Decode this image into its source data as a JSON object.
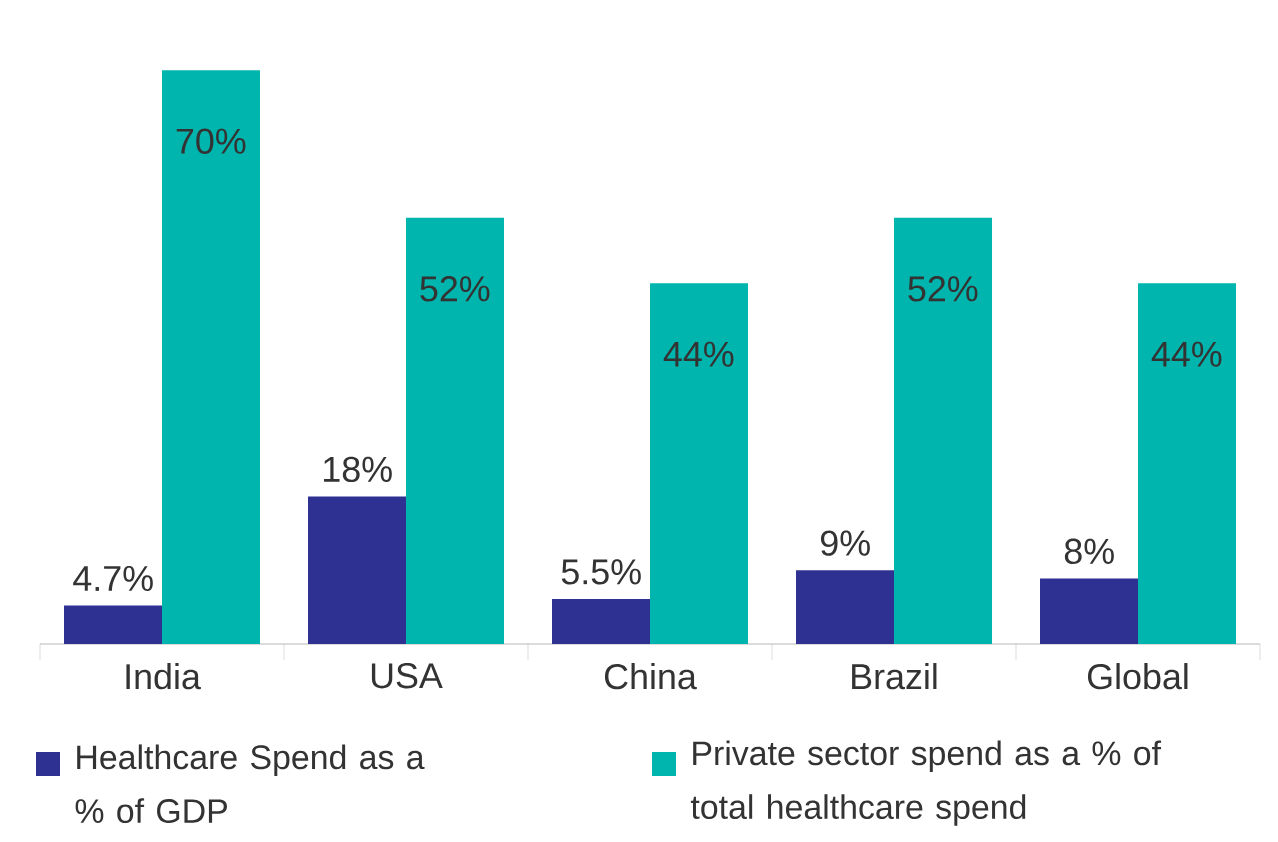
{
  "chart_data": {
    "type": "bar",
    "categories": [
      "India",
      "USA",
      "China",
      "Brazil",
      "Global"
    ],
    "series": [
      {
        "name": "Healthcare Spend as a % of GDP",
        "color": "#2e3192",
        "values": [
          4.7,
          18,
          5.5,
          9,
          8
        ],
        "value_labels": [
          "4.7%",
          "18%",
          "5.5%",
          "9%",
          "8%"
        ]
      },
      {
        "name": "Private sector spend as a % of total healthcare spend",
        "color": "#00b5ad",
        "values": [
          70,
          52,
          44,
          52,
          44
        ],
        "value_labels": [
          "70%",
          "52%",
          "44%",
          "52%",
          "44%"
        ]
      }
    ],
    "legend": "bottom"
  }
}
